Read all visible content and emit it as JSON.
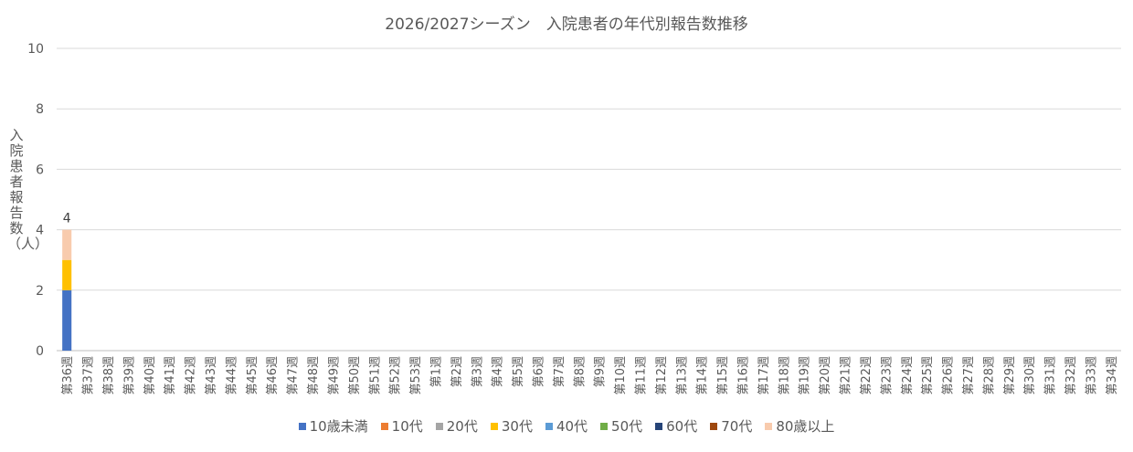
{
  "chart_data": {
    "type": "bar",
    "stacked": true,
    "title": "2026/2027シーズン　入院患者の年代別報告数推移",
    "xlabel": "",
    "ylabel": "入院患者報告数（人）",
    "ylim": [
      0,
      10
    ],
    "yticks": [
      0,
      2,
      4,
      6,
      8,
      10
    ],
    "grid": true,
    "legend_position": "bottom",
    "categories": [
      "第36週",
      "第37週",
      "第38週",
      "第39週",
      "第40週",
      "第41週",
      "第42週",
      "第43週",
      "第44週",
      "第45週",
      "第46週",
      "第47週",
      "第48週",
      "第49週",
      "第50週",
      "第51週",
      "第52週",
      "第53週",
      "第1週",
      "第2週",
      "第3週",
      "第4週",
      "第5週",
      "第6週",
      "第7週",
      "第8週",
      "第9週",
      "第10週",
      "第11週",
      "第12週",
      "第13週",
      "第14週",
      "第15週",
      "第16週",
      "第17週",
      "第18週",
      "第19週",
      "第20週",
      "第21週",
      "第22週",
      "第23週",
      "第24週",
      "第25週",
      "第26週",
      "第27週",
      "第28週",
      "第29週",
      "第30週",
      "第31週",
      "第32週",
      "第33週",
      "第34週"
    ],
    "series": [
      {
        "name": "10歳未満",
        "color": "#4472C4",
        "values": [
          2,
          0,
          0,
          0,
          0,
          0,
          0,
          0,
          0,
          0,
          0,
          0,
          0,
          0,
          0,
          0,
          0,
          0,
          0,
          0,
          0,
          0,
          0,
          0,
          0,
          0,
          0,
          0,
          0,
          0,
          0,
          0,
          0,
          0,
          0,
          0,
          0,
          0,
          0,
          0,
          0,
          0,
          0,
          0,
          0,
          0,
          0,
          0,
          0,
          0,
          0,
          0
        ]
      },
      {
        "name": "10代",
        "color": "#ED7D31",
        "values": [
          0,
          0,
          0,
          0,
          0,
          0,
          0,
          0,
          0,
          0,
          0,
          0,
          0,
          0,
          0,
          0,
          0,
          0,
          0,
          0,
          0,
          0,
          0,
          0,
          0,
          0,
          0,
          0,
          0,
          0,
          0,
          0,
          0,
          0,
          0,
          0,
          0,
          0,
          0,
          0,
          0,
          0,
          0,
          0,
          0,
          0,
          0,
          0,
          0,
          0,
          0,
          0
        ]
      },
      {
        "name": "20代",
        "color": "#A5A5A5",
        "values": [
          0,
          0,
          0,
          0,
          0,
          0,
          0,
          0,
          0,
          0,
          0,
          0,
          0,
          0,
          0,
          0,
          0,
          0,
          0,
          0,
          0,
          0,
          0,
          0,
          0,
          0,
          0,
          0,
          0,
          0,
          0,
          0,
          0,
          0,
          0,
          0,
          0,
          0,
          0,
          0,
          0,
          0,
          0,
          0,
          0,
          0,
          0,
          0,
          0,
          0,
          0,
          0
        ]
      },
      {
        "name": "30代",
        "color": "#FFC000",
        "values": [
          1,
          0,
          0,
          0,
          0,
          0,
          0,
          0,
          0,
          0,
          0,
          0,
          0,
          0,
          0,
          0,
          0,
          0,
          0,
          0,
          0,
          0,
          0,
          0,
          0,
          0,
          0,
          0,
          0,
          0,
          0,
          0,
          0,
          0,
          0,
          0,
          0,
          0,
          0,
          0,
          0,
          0,
          0,
          0,
          0,
          0,
          0,
          0,
          0,
          0,
          0,
          0
        ]
      },
      {
        "name": "40代",
        "color": "#5B9BD5",
        "values": [
          0,
          0,
          0,
          0,
          0,
          0,
          0,
          0,
          0,
          0,
          0,
          0,
          0,
          0,
          0,
          0,
          0,
          0,
          0,
          0,
          0,
          0,
          0,
          0,
          0,
          0,
          0,
          0,
          0,
          0,
          0,
          0,
          0,
          0,
          0,
          0,
          0,
          0,
          0,
          0,
          0,
          0,
          0,
          0,
          0,
          0,
          0,
          0,
          0,
          0,
          0,
          0
        ]
      },
      {
        "name": "50代",
        "color": "#70AD47",
        "values": [
          0,
          0,
          0,
          0,
          0,
          0,
          0,
          0,
          0,
          0,
          0,
          0,
          0,
          0,
          0,
          0,
          0,
          0,
          0,
          0,
          0,
          0,
          0,
          0,
          0,
          0,
          0,
          0,
          0,
          0,
          0,
          0,
          0,
          0,
          0,
          0,
          0,
          0,
          0,
          0,
          0,
          0,
          0,
          0,
          0,
          0,
          0,
          0,
          0,
          0,
          0,
          0
        ]
      },
      {
        "name": "60代",
        "color": "#264478",
        "values": [
          0,
          0,
          0,
          0,
          0,
          0,
          0,
          0,
          0,
          0,
          0,
          0,
          0,
          0,
          0,
          0,
          0,
          0,
          0,
          0,
          0,
          0,
          0,
          0,
          0,
          0,
          0,
          0,
          0,
          0,
          0,
          0,
          0,
          0,
          0,
          0,
          0,
          0,
          0,
          0,
          0,
          0,
          0,
          0,
          0,
          0,
          0,
          0,
          0,
          0,
          0,
          0
        ]
      },
      {
        "name": "70代",
        "color": "#9E480E",
        "values": [
          0,
          0,
          0,
          0,
          0,
          0,
          0,
          0,
          0,
          0,
          0,
          0,
          0,
          0,
          0,
          0,
          0,
          0,
          0,
          0,
          0,
          0,
          0,
          0,
          0,
          0,
          0,
          0,
          0,
          0,
          0,
          0,
          0,
          0,
          0,
          0,
          0,
          0,
          0,
          0,
          0,
          0,
          0,
          0,
          0,
          0,
          0,
          0,
          0,
          0,
          0,
          0
        ]
      },
      {
        "name": "80歳以上",
        "color": "#F8CBAD",
        "values": [
          1,
          0,
          0,
          0,
          0,
          0,
          0,
          0,
          0,
          0,
          0,
          0,
          0,
          0,
          0,
          0,
          0,
          0,
          0,
          0,
          0,
          0,
          0,
          0,
          0,
          0,
          0,
          0,
          0,
          0,
          0,
          0,
          0,
          0,
          0,
          0,
          0,
          0,
          0,
          0,
          0,
          0,
          0,
          0,
          0,
          0,
          0,
          0,
          0,
          0,
          0,
          0
        ]
      }
    ],
    "totals_labels": [
      {
        "category": "第36週",
        "label": "4"
      }
    ]
  }
}
